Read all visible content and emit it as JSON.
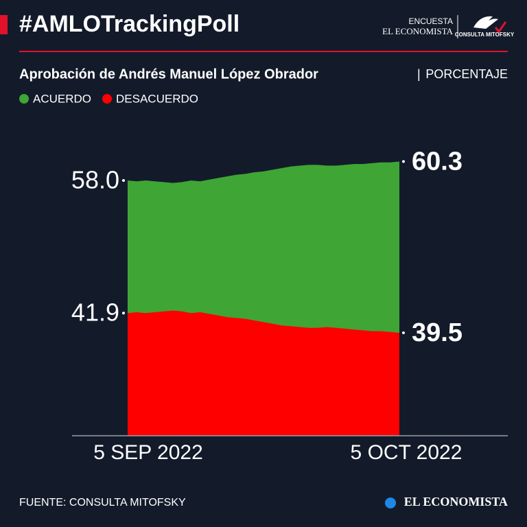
{
  "header": {
    "title": "#AMLOTrackingPoll",
    "logo_top": "ENCUESTA",
    "logo_name": "EL ECONOMISTA",
    "logo_partner": "CONSULTA MITOFSKY"
  },
  "chart_data": {
    "type": "area",
    "title": "Aprobación de Andrés Manuel López Obrador",
    "unit": "PORCENTAJE",
    "categories": [
      "5 SEP 2022",
      null,
      null,
      null,
      null,
      null,
      null,
      null,
      null,
      null,
      null,
      null,
      null,
      null,
      null,
      null,
      null,
      null,
      null,
      null,
      null,
      null,
      null,
      null,
      null,
      null,
      null,
      null,
      null,
      null,
      "5 OCT 2022"
    ],
    "series": [
      {
        "name": "ACUERDO",
        "color": "#3fa535",
        "values": [
          58.0,
          57.9,
          58.0,
          57.9,
          57.8,
          57.7,
          57.8,
          58.0,
          57.9,
          58.1,
          58.3,
          58.5,
          58.7,
          58.8,
          59.0,
          59.1,
          59.3,
          59.5,
          59.7,
          59.8,
          59.9,
          59.9,
          59.8,
          59.8,
          59.9,
          60.0,
          60.0,
          60.1,
          60.2,
          60.2,
          60.3
        ],
        "value_labels": [
          "58.0",
          null,
          null,
          null,
          null,
          null,
          null,
          null,
          null,
          null,
          null,
          null,
          null,
          null,
          null,
          null,
          null,
          null,
          null,
          null,
          null,
          null,
          null,
          null,
          null,
          null,
          null,
          null,
          null,
          null,
          "60.3"
        ]
      },
      {
        "name": "DESACUERDO",
        "color": "#ff0000",
        "values": [
          41.9,
          42.0,
          41.9,
          42.0,
          42.1,
          42.2,
          42.1,
          41.9,
          42.0,
          41.8,
          41.6,
          41.4,
          41.3,
          41.2,
          41.0,
          40.8,
          40.6,
          40.4,
          40.3,
          40.2,
          40.1,
          40.1,
          40.2,
          40.1,
          40.0,
          39.9,
          39.8,
          39.7,
          39.7,
          39.6,
          39.5
        ],
        "value_labels": [
          "41.9",
          null,
          null,
          null,
          null,
          null,
          null,
          null,
          null,
          null,
          null,
          null,
          null,
          null,
          null,
          null,
          null,
          null,
          null,
          null,
          null,
          null,
          null,
          null,
          null,
          null,
          null,
          null,
          null,
          null,
          "39.5"
        ]
      }
    ],
    "ylim": [
      27,
      65
    ]
  },
  "footer": {
    "source": "FUENTE: CONSULTA MITOFSKY",
    "brand": "EL ECONOMISTA"
  }
}
